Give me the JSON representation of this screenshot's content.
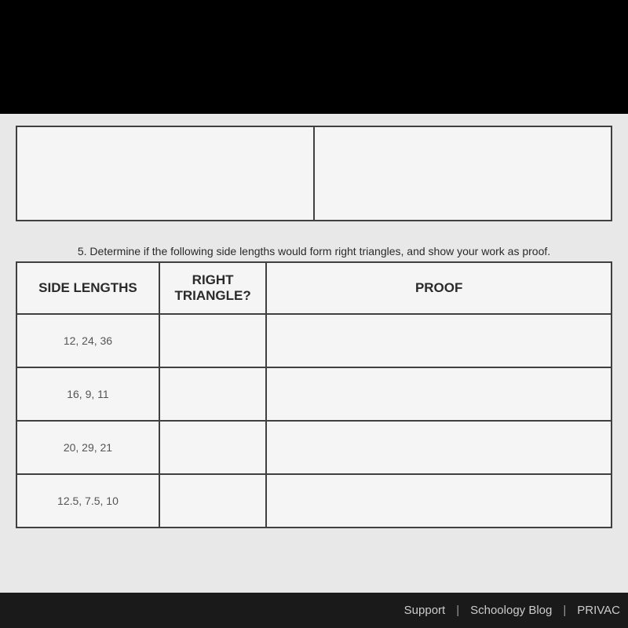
{
  "question": {
    "number": "5.",
    "text": "Determine if the following side lengths would form right triangles, and show your work as proof."
  },
  "table": {
    "headers": {
      "side_lengths": "SIDE LENGTHS",
      "right_triangle": "RIGHT\nTRIANGLE?",
      "proof": "PROOF"
    },
    "rows": [
      {
        "side_lengths": "12, 24, 36",
        "right_triangle": "",
        "proof": ""
      },
      {
        "side_lengths": "16, 9, 11",
        "right_triangle": "",
        "proof": ""
      },
      {
        "side_lengths": "20, 29, 21",
        "right_triangle": "",
        "proof": ""
      },
      {
        "side_lengths": "12.5, 7.5, 10",
        "right_triangle": "",
        "proof": ""
      }
    ]
  },
  "footer": {
    "link_support": "Support",
    "link_blog": "Schoology Blog",
    "link_privacy": "PRIVAC",
    "divider": "|"
  }
}
